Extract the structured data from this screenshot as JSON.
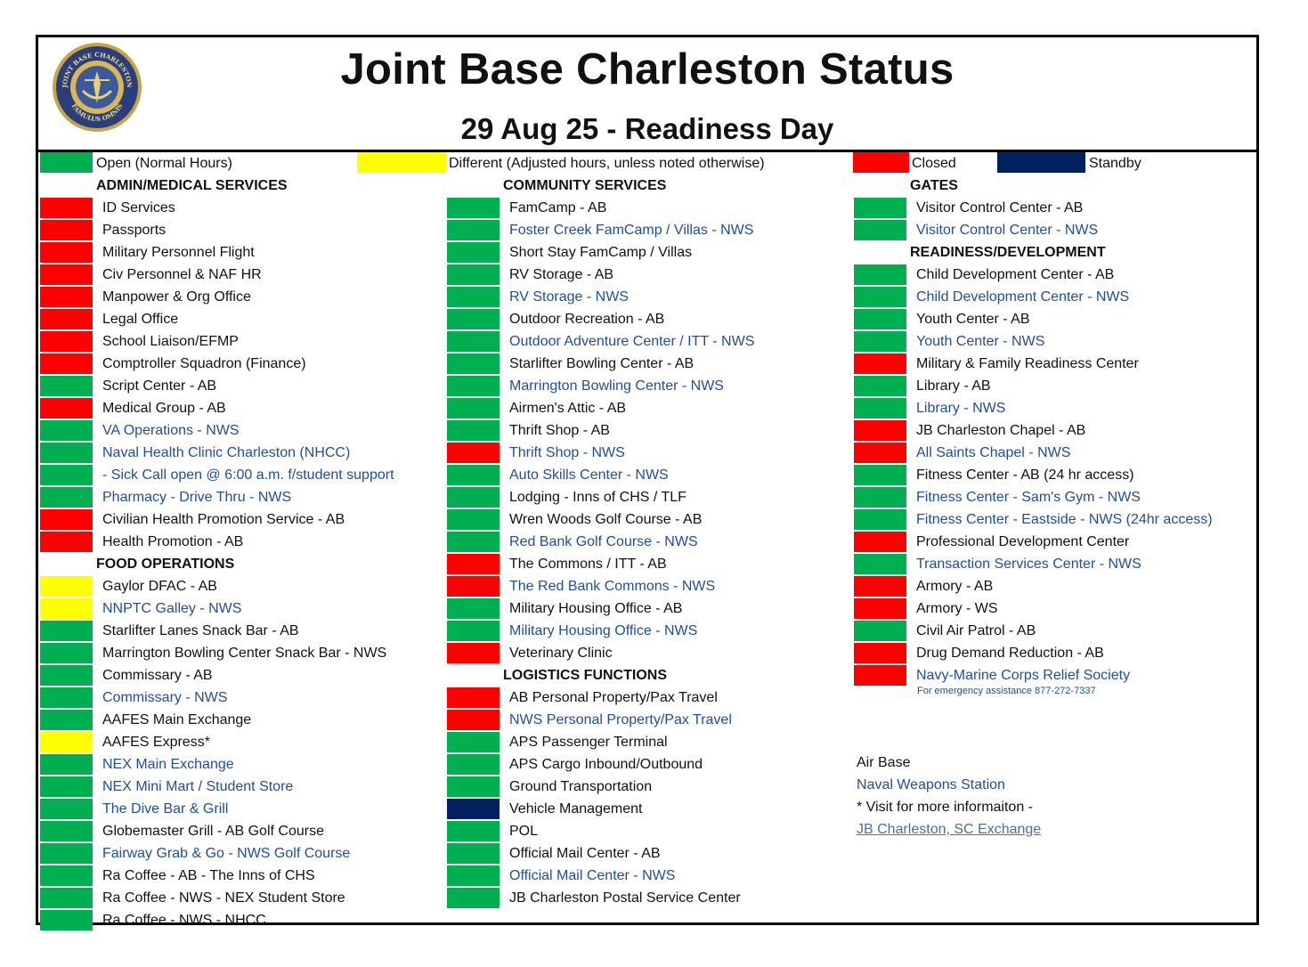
{
  "title": "Joint Base Charleston Status",
  "subtitle": "29 Aug 25 - Readiness Day",
  "logo": {
    "top_text": "JOINT BASE CHARLESTON",
    "bottom_text": "FAMULUS OMNIS"
  },
  "colors": {
    "open": "#00b050",
    "different": "#ffff00",
    "closed": "#ff0000",
    "standby": "#002060"
  },
  "legend": {
    "open": "Open (Normal Hours)",
    "different": "Different (Adjusted hours, unless noted otherwise)",
    "closed": "Closed",
    "standby": "Standby"
  },
  "columns": [
    {
      "rows": [
        {
          "type": "header",
          "text": "ADMIN/MEDICAL SERVICES"
        },
        {
          "text": "ID Services",
          "status": "closed"
        },
        {
          "text": "Passports",
          "status": "closed"
        },
        {
          "text": "Military Personnel Flight",
          "status": "closed"
        },
        {
          "text": "Civ Personnel & NAF HR",
          "status": "closed"
        },
        {
          "text": "Manpower & Org Office",
          "status": "closed"
        },
        {
          "text": "Legal Office",
          "status": "closed"
        },
        {
          "text": "School Liaison/EFMP",
          "status": "closed"
        },
        {
          "text": "Comptroller Squadron (Finance)",
          "status": "closed"
        },
        {
          "text": "Script Center - AB",
          "status": "open"
        },
        {
          "text": "Medical Group - AB",
          "status": "closed"
        },
        {
          "text": "VA Operations - NWS",
          "status": "open",
          "blue": true
        },
        {
          "text": "Naval Health Clinic Charleston (NHCC)",
          "status": "open",
          "blue": true
        },
        {
          "text": "- Sick Call open @ 6:00 a.m. f/student support",
          "status": "open",
          "blue": true
        },
        {
          "text": "Pharmacy - Drive Thru - NWS",
          "status": "open",
          "blue": true
        },
        {
          "text": "Civilian Health Promotion Service - AB",
          "status": "closed"
        },
        {
          "text": "Health Promotion - AB",
          "status": "closed"
        },
        {
          "type": "header",
          "text": "FOOD OPERATIONS"
        },
        {
          "text": "Gaylor DFAC - AB",
          "status": "different"
        },
        {
          "text": "NNPTC Galley - NWS",
          "status": "different",
          "blue": true
        },
        {
          "text": "Starlifter Lanes Snack Bar - AB",
          "status": "open"
        },
        {
          "text": "Marrington Bowling Center Snack Bar - NWS",
          "status": "open"
        },
        {
          "text": "Commissary - AB",
          "status": "open"
        },
        {
          "text": "Commissary - NWS",
          "status": "open",
          "blue": true
        },
        {
          "text": "AAFES Main Exchange",
          "status": "open"
        },
        {
          "text": "AAFES Express*",
          "status": "different"
        },
        {
          "text": "NEX Main Exchange",
          "status": "open",
          "blue": true
        },
        {
          "text": "NEX Mini Mart / Student Store",
          "status": "open",
          "blue": true
        },
        {
          "text": "The Dive Bar & Grill",
          "status": "open",
          "blue": true
        },
        {
          "text": "Globemaster Grill - AB Golf Course",
          "status": "open"
        },
        {
          "text": "Fairway Grab & Go - NWS Golf Course",
          "status": "open",
          "blue": true
        },
        {
          "text": "Ra Coffee - AB - The Inns of CHS",
          "status": "open"
        },
        {
          "text": "Ra Coffee - NWS - NEX Student Store",
          "status": "open"
        },
        {
          "text": "Ra Coffee - NWS - NHCC",
          "status": "open"
        }
      ]
    },
    {
      "rows": [
        {
          "type": "header",
          "text": "COMMUNITY SERVICES"
        },
        {
          "text": "FamCamp - AB",
          "status": "open"
        },
        {
          "text": "Foster Creek FamCamp / Villas - NWS",
          "status": "open",
          "blue": true
        },
        {
          "text": "Short Stay FamCamp / Villas",
          "status": "open"
        },
        {
          "text": "RV Storage - AB",
          "status": "open"
        },
        {
          "text": "RV Storage - NWS",
          "status": "open",
          "blue": true
        },
        {
          "text": "Outdoor Recreation - AB",
          "status": "open"
        },
        {
          "text": "Outdoor Adventure Center / ITT - NWS",
          "status": "open",
          "blue": true
        },
        {
          "text": "Starlifter Bowling Center - AB",
          "status": "open"
        },
        {
          "text": "Marrington Bowling Center - NWS",
          "status": "open",
          "blue": true
        },
        {
          "text": "Airmen's Attic - AB",
          "status": "open"
        },
        {
          "text": "Thrift Shop - AB",
          "status": "open"
        },
        {
          "text": "Thrift Shop - NWS",
          "status": "closed",
          "blue": true
        },
        {
          "text": "Auto Skills Center - NWS",
          "status": "open",
          "blue": true
        },
        {
          "text": "Lodging - Inns of CHS / TLF",
          "status": "open"
        },
        {
          "text": "Wren Woods Golf Course - AB",
          "status": "open"
        },
        {
          "text": "Red Bank Golf Course - NWS",
          "status": "open",
          "blue": true
        },
        {
          "text": "The Commons / ITT - AB",
          "status": "closed"
        },
        {
          "text": "The Red Bank Commons - NWS",
          "status": "closed",
          "blue": true
        },
        {
          "text": "Military Housing Office - AB",
          "status": "open"
        },
        {
          "text": "Military Housing Office - NWS",
          "status": "open",
          "blue": true
        },
        {
          "text": "Veterinary Clinic",
          "status": "closed"
        },
        {
          "type": "header",
          "text": "LOGISTICS FUNCTIONS"
        },
        {
          "text": "AB Personal Property/Pax Travel",
          "status": "closed"
        },
        {
          "text": "NWS Personal Property/Pax Travel",
          "status": "closed",
          "blue": true
        },
        {
          "text": "APS Passenger Terminal",
          "status": "open"
        },
        {
          "text": "APS Cargo Inbound/Outbound",
          "status": "open"
        },
        {
          "text": "Ground Transportation",
          "status": "open"
        },
        {
          "text": "Vehicle Management",
          "status": "standby"
        },
        {
          "text": "POL",
          "status": "open"
        },
        {
          "text": "Official Mail Center - AB",
          "status": "open"
        },
        {
          "text": "Official Mail Center - NWS",
          "status": "open",
          "blue": true
        },
        {
          "text": "JB Charleston Postal Service Center",
          "status": "open"
        }
      ]
    },
    {
      "rows": [
        {
          "type": "header",
          "text": "GATES"
        },
        {
          "text": "Visitor Control Center - AB",
          "status": "open"
        },
        {
          "text": "Visitor Control Center - NWS",
          "status": "open",
          "blue": true
        },
        {
          "type": "header",
          "text": "READINESS/DEVELOPMENT"
        },
        {
          "text": "Child Development Center - AB",
          "status": "open"
        },
        {
          "text": "Child Development Center - NWS",
          "status": "open",
          "blue": true
        },
        {
          "text": "Youth Center - AB",
          "status": "open"
        },
        {
          "text": "Youth Center - NWS",
          "status": "open",
          "blue": true
        },
        {
          "text": "Military & Family Readiness Center",
          "status": "closed"
        },
        {
          "text": "Library - AB",
          "status": "open"
        },
        {
          "text": "Library - NWS",
          "status": "open",
          "blue": true
        },
        {
          "text": "JB Charleston Chapel - AB",
          "status": "closed"
        },
        {
          "text": "All Saints Chapel - NWS",
          "status": "closed",
          "blue": true
        },
        {
          "text": "Fitness Center - AB (24 hr access)",
          "status": "open"
        },
        {
          "text": "Fitness Center - Sam's Gym - NWS",
          "status": "open",
          "blue": true
        },
        {
          "text": "Fitness Center - Eastside - NWS (24hr access)",
          "status": "open",
          "blue": true
        },
        {
          "text": "Professional Development Center",
          "status": "closed"
        },
        {
          "text": "Transaction Services Center - NWS",
          "status": "open",
          "blue": true
        },
        {
          "text": "Armory - AB",
          "status": "closed"
        },
        {
          "text": "Armory - WS",
          "status": "closed"
        },
        {
          "text": "Civil Air Patrol - AB",
          "status": "open"
        },
        {
          "text": "Drug Demand Reduction - AB",
          "status": "closed"
        },
        {
          "text": "Navy-Marine Corps Relief Society",
          "status": "closed",
          "blue": true
        }
      ],
      "note": "For emergency assistance 877-272-7337"
    }
  ],
  "key": {
    "air_base": "Air Base",
    "naval_weapons_station": "Naval Weapons Station",
    "visit_note": "* Visit for more informaiton -",
    "exchange_link": "JB Charleston, SC Exchange"
  }
}
